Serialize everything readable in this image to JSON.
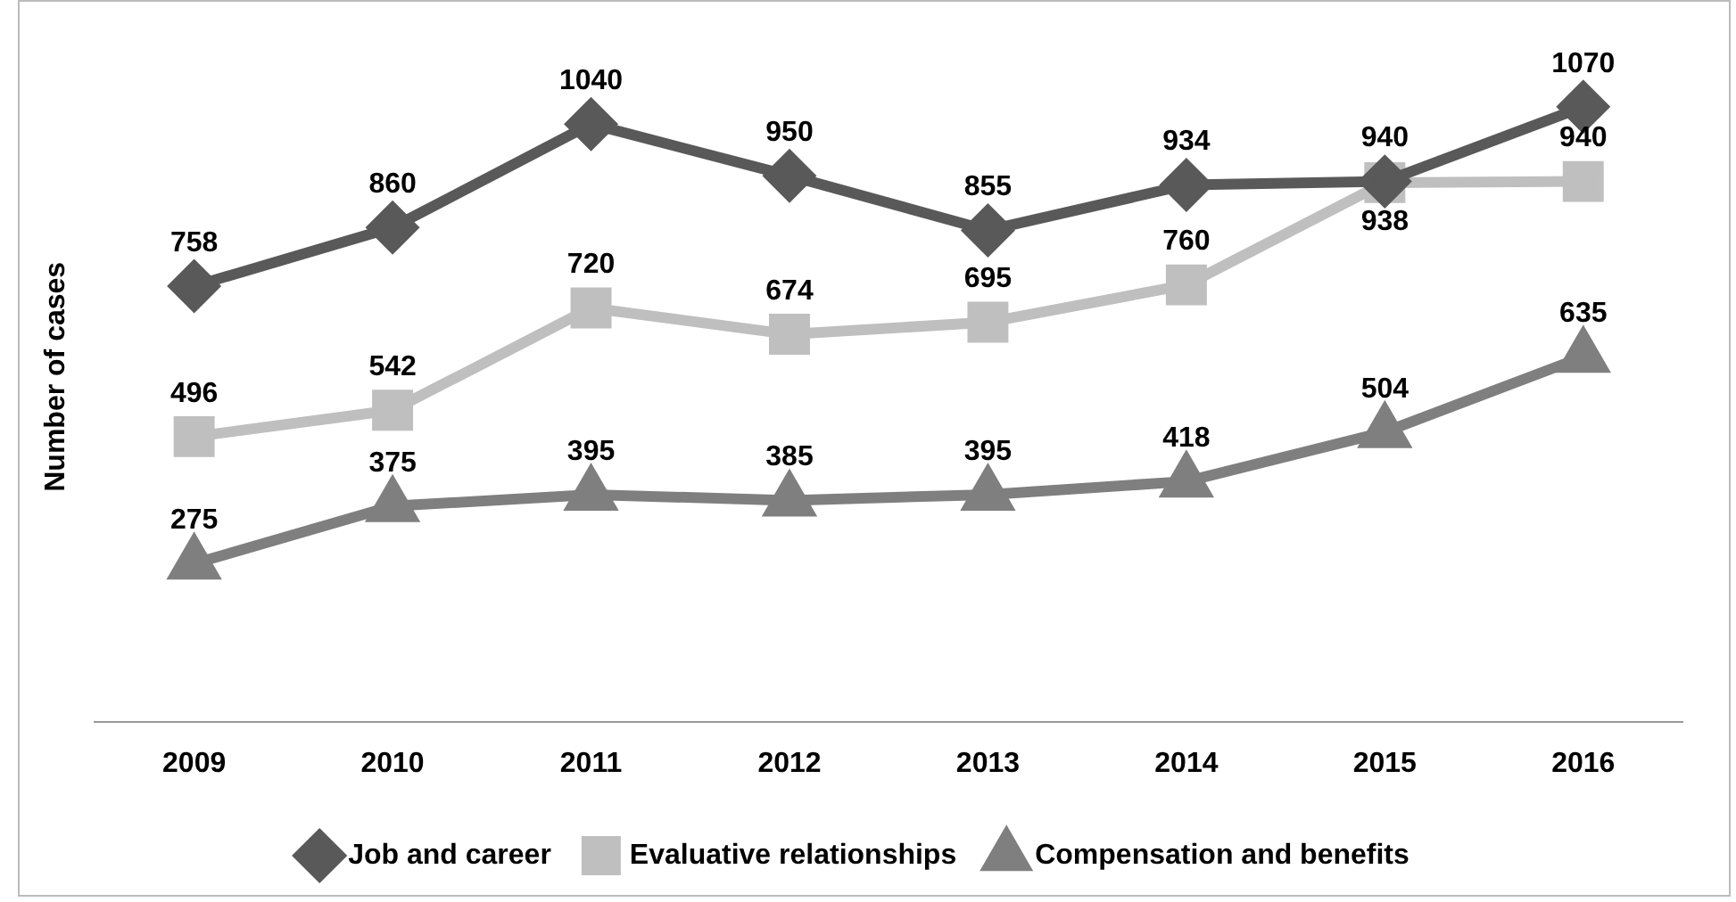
{
  "chart_data": {
    "type": "line",
    "ylabel": "Number of cases",
    "categories": [
      "2009",
      "2010",
      "2011",
      "2012",
      "2013",
      "2014",
      "2015",
      "2016"
    ],
    "series": [
      {
        "name": "Job and career",
        "color": "#595959",
        "marker": "diamond",
        "values": [
          758,
          860,
          1040,
          950,
          855,
          934,
          940,
          1070
        ]
      },
      {
        "name": "Evaluative relationships",
        "color": "#bfbfbf",
        "marker": "square",
        "values": [
          496,
          542,
          720,
          674,
          695,
          760,
          938,
          940
        ]
      },
      {
        "name": "Compensation and benefits",
        "color": "#7f7f7f",
        "marker": "triangle",
        "values": [
          275,
          375,
          395,
          385,
          395,
          418,
          504,
          635
        ]
      }
    ],
    "tick_labels": "x",
    "data_labels": true,
    "legend": "bottom",
    "grid": false
  }
}
